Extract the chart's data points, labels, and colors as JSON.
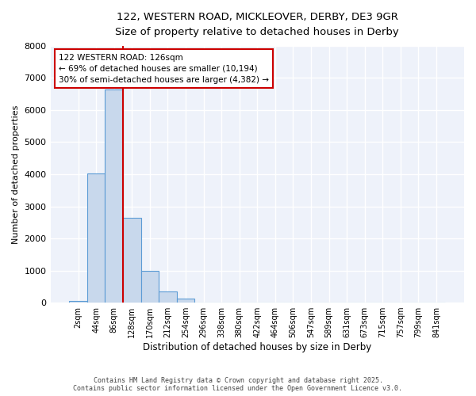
{
  "title_line1": "122, WESTERN ROAD, MICKLEOVER, DERBY, DE3 9GR",
  "title_line2": "Size of property relative to detached houses in Derby",
  "xlabel": "Distribution of detached houses by size in Derby",
  "ylabel": "Number of detached properties",
  "categories": [
    "2sqm",
    "44sqm",
    "86sqm",
    "128sqm",
    "170sqm",
    "212sqm",
    "254sqm",
    "296sqm",
    "338sqm",
    "380sqm",
    "422sqm",
    "464sqm",
    "506sqm",
    "547sqm",
    "589sqm",
    "631sqm",
    "673sqm",
    "715sqm",
    "757sqm",
    "799sqm",
    "841sqm"
  ],
  "values": [
    50,
    4020,
    6650,
    2650,
    990,
    345,
    130,
    0,
    0,
    0,
    0,
    0,
    0,
    0,
    0,
    0,
    0,
    0,
    0,
    0,
    0
  ],
  "bar_color": "#c8d8ec",
  "bar_edge_color": "#5b9bd5",
  "property_line_color": "#cc0000",
  "property_line_x": 2.5,
  "annotation_text": "122 WESTERN ROAD: 126sqm\n← 69% of detached houses are smaller (10,194)\n30% of semi-detached houses are larger (4,382) →",
  "annotation_box_edgecolor": "#cc0000",
  "ylim_max": 8000,
  "yticks": [
    0,
    1000,
    2000,
    3000,
    4000,
    5000,
    6000,
    7000,
    8000
  ],
  "plot_bg_color": "#eef2fa",
  "grid_color": "#ffffff",
  "footer_line1": "Contains HM Land Registry data © Crown copyright and database right 2025.",
  "footer_line2": "Contains public sector information licensed under the Open Government Licence v3.0."
}
